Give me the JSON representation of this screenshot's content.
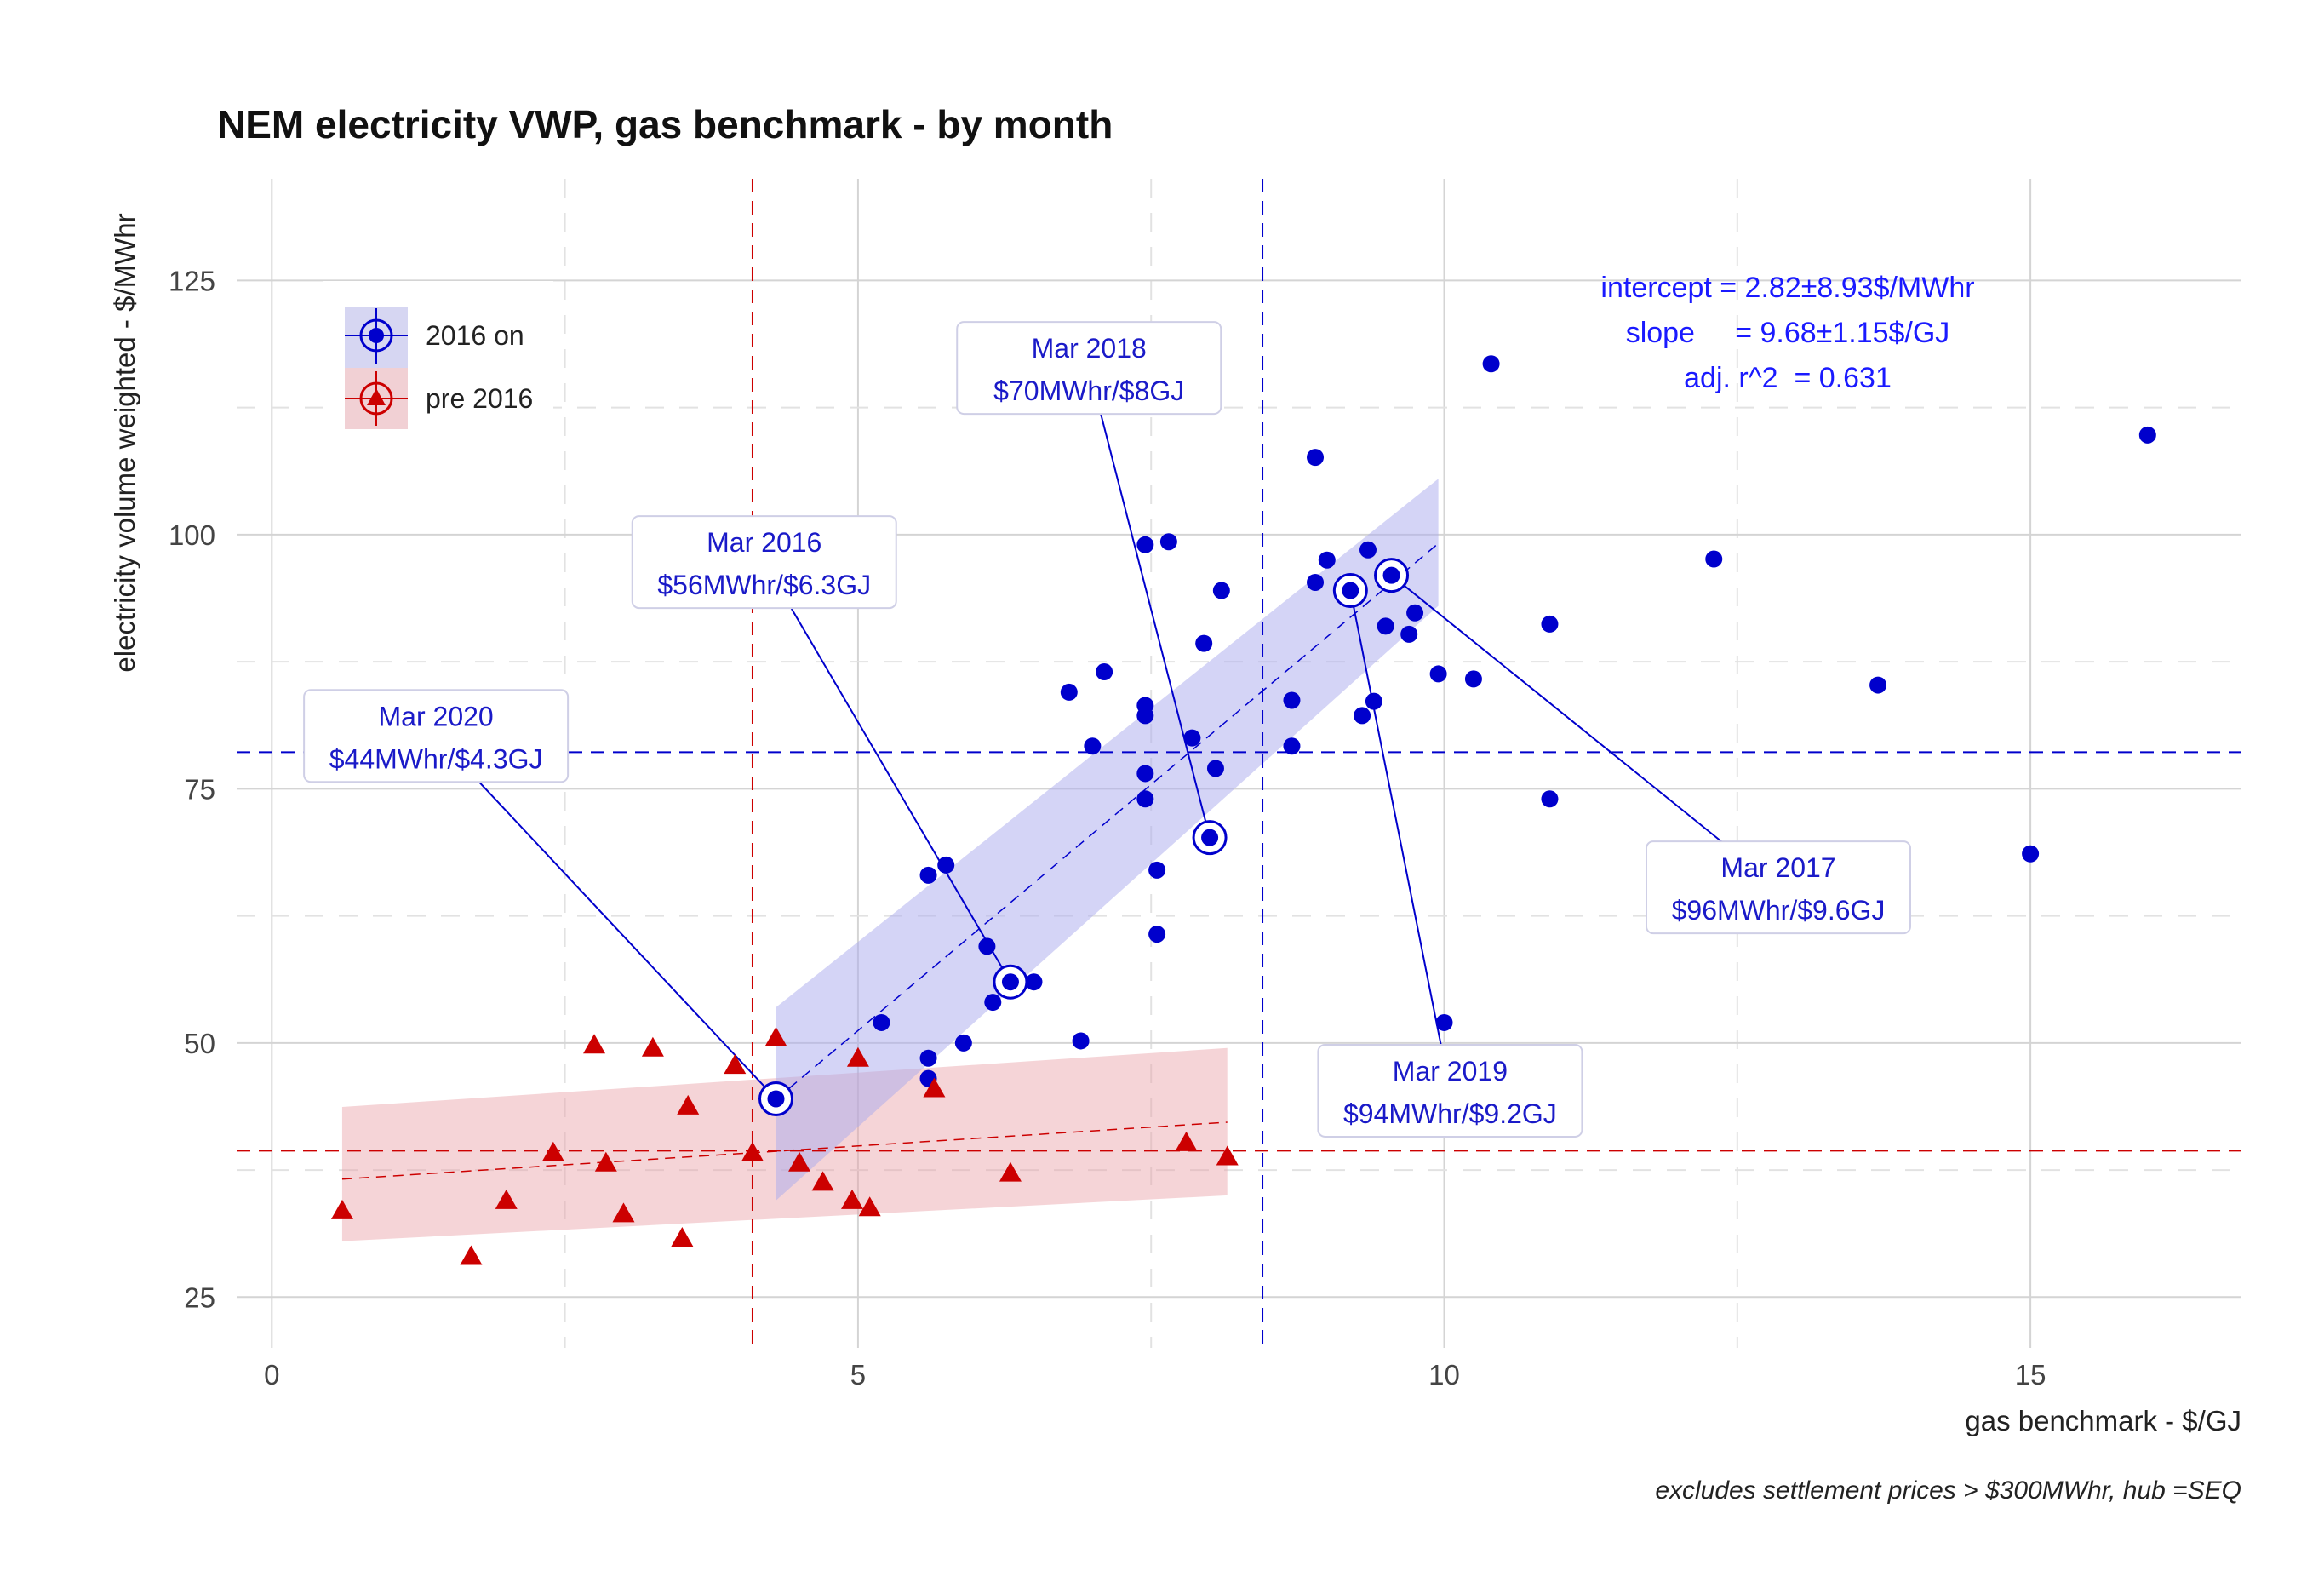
{
  "chart_data": {
    "type": "scatter",
    "title": "NEM electricity VWP, gas benchmark - by month",
    "xlabel": "gas benchmark - $/GJ",
    "ylabel": "electricity volume weighted - $/MWhr",
    "caption": "excludes settlement prices > $300MWhr, hub =SEQ",
    "xlim": [
      -0.3,
      16.8
    ],
    "ylim": [
      20,
      135
    ],
    "x_major_ticks": [
      0,
      5,
      10,
      15
    ],
    "x_minor_ticks": [
      2.5,
      7.5,
      12.5
    ],
    "y_major_ticks": [
      25,
      50,
      75,
      100,
      125
    ],
    "y_minor_ticks": [
      37.5,
      62.5,
      87.5,
      112.5
    ],
    "grid": true,
    "legend": {
      "position": "top-left",
      "entries": [
        "2016 on",
        "pre 2016"
      ]
    },
    "colors": {
      "2016 on": "#0000cc",
      "pre 2016": "#cc0000",
      "ribbon_blue": "#aaaaee",
      "ribbon_red": "#e8a0a6",
      "label_text": "#1a1ac8"
    },
    "series": [
      {
        "name": "2016 on",
        "marker": "circle",
        "points": [
          [
            4.3,
            44.5
          ],
          [
            5.2,
            52
          ],
          [
            5.6,
            48.5
          ],
          [
            5.6,
            46.5
          ],
          [
            5.6,
            66.5
          ],
          [
            5.75,
            67.5
          ],
          [
            5.9,
            50
          ],
          [
            6.1,
            59.5
          ],
          [
            6.15,
            54
          ],
          [
            6.3,
            56
          ],
          [
            6.5,
            56
          ],
          [
            6.8,
            84.5
          ],
          [
            6.9,
            50.2
          ],
          [
            7.0,
            79.2
          ],
          [
            7.1,
            86.5
          ],
          [
            7.45,
            99
          ],
          [
            7.45,
            83.2
          ],
          [
            7.45,
            82.2
          ],
          [
            7.45,
            76.5
          ],
          [
            7.45,
            74
          ],
          [
            7.55,
            67
          ],
          [
            7.55,
            60.7
          ],
          [
            7.65,
            99.3
          ],
          [
            7.85,
            80
          ],
          [
            7.95,
            89.3
          ],
          [
            8.0,
            70.2
          ],
          [
            8.05,
            77
          ],
          [
            8.1,
            94.5
          ],
          [
            8.7,
            83.7
          ],
          [
            8.7,
            79.2
          ],
          [
            8.9,
            107.6
          ],
          [
            8.9,
            95.3
          ],
          [
            9.0,
            97.5
          ],
          [
            9.2,
            94.5
          ],
          [
            9.3,
            82.2
          ],
          [
            9.35,
            98.5
          ],
          [
            9.4,
            83.6
          ],
          [
            9.5,
            91
          ],
          [
            9.55,
            96
          ],
          [
            9.7,
            90.2
          ],
          [
            9.75,
            92.3
          ],
          [
            9.95,
            86.3
          ],
          [
            10.0,
            52
          ],
          [
            10.25,
            85.8
          ],
          [
            10.4,
            116.8
          ],
          [
            10.9,
            91.2
          ],
          [
            10.9,
            74
          ],
          [
            12.3,
            97.6
          ],
          [
            13.7,
            85.2
          ],
          [
            15.0,
            68.6
          ],
          [
            16.0,
            109.8
          ]
        ]
      },
      {
        "name": "pre 2016",
        "marker": "triangle",
        "points": [
          [
            0.6,
            33.5
          ],
          [
            1.7,
            29
          ],
          [
            2.0,
            34.5
          ],
          [
            2.4,
            39.2
          ],
          [
            2.75,
            49.8
          ],
          [
            2.85,
            38.2
          ],
          [
            3.0,
            33.2
          ],
          [
            3.25,
            49.5
          ],
          [
            3.5,
            30.8
          ],
          [
            3.55,
            43.8
          ],
          [
            3.95,
            47.8
          ],
          [
            4.1,
            39.2
          ],
          [
            4.3,
            50.5
          ],
          [
            4.5,
            38.2
          ],
          [
            4.7,
            36.3
          ],
          [
            4.95,
            34.5
          ],
          [
            5.0,
            48.5
          ],
          [
            5.1,
            33.8
          ],
          [
            5.65,
            45.5
          ],
          [
            6.3,
            37.2
          ],
          [
            7.8,
            40.2
          ],
          [
            8.15,
            38.8
          ]
        ]
      }
    ],
    "means": {
      "2016 on": {
        "x": 8.45,
        "y": 78.6
      },
      "pre 2016": {
        "x": 4.1,
        "y": 39.4
      }
    },
    "fits": {
      "2016 on": {
        "x_range": [
          4.3,
          9.95
        ],
        "intercept": 2.82,
        "slope": 9.68,
        "ci_lower": [
          34.5,
          93
        ],
        "ci_upper": [
          53.5,
          105.5
        ]
      },
      "pre 2016": {
        "x_range": [
          0.6,
          8.15
        ],
        "y_fit": [
          36.6,
          42.2
        ],
        "ci_lower": [
          30.5,
          35
        ],
        "ci_upper": [
          43.7,
          49.5
        ]
      }
    },
    "stats": [
      "intercept = 2.82±8.93$/MWhr",
      "slope     = 9.68±1.15$/GJ",
      "adj. r^2  = 0.631"
    ],
    "annotations": [
      {
        "lines": [
          "Mar 2020",
          "$44MWhr/$4.3GJ"
        ],
        "point": [
          4.3,
          44.5
        ],
        "label_at": [
          1.4,
          80.2
        ]
      },
      {
        "lines": [
          "Mar 2016",
          "$56MWhr/$6.3GJ"
        ],
        "point": [
          6.3,
          56
        ],
        "label_at": [
          4.2,
          97.3
        ]
      },
      {
        "lines": [
          "Mar 2018",
          "$70MWhr/$8GJ"
        ],
        "point": [
          8.0,
          70.2
        ],
        "label_at": [
          6.97,
          116.4
        ]
      },
      {
        "lines": [
          "Mar 2017",
          "$96MWhr/$9.6GJ"
        ],
        "point": [
          9.55,
          96
        ],
        "label_at": [
          12.85,
          65.3
        ]
      },
      {
        "lines": [
          "Mar 2019",
          "$94MWhr/$9.2GJ"
        ],
        "point": [
          9.2,
          94.5
        ],
        "label_at": [
          10.05,
          45.3
        ]
      }
    ]
  }
}
